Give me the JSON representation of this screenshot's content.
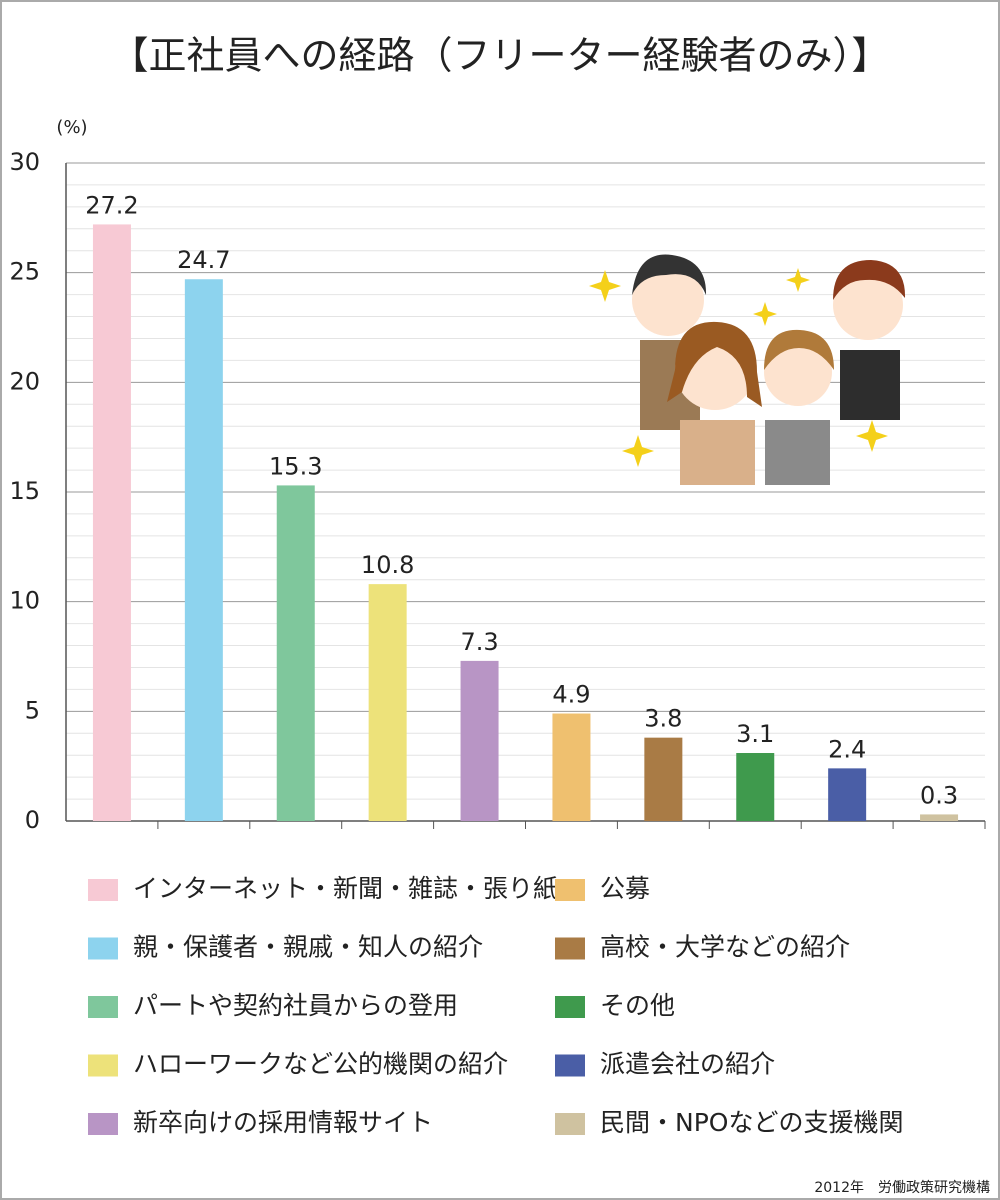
{
  "chart_data": {
    "type": "bar",
    "title": "【正社員への経路（フリーター経験者のみ）】",
    "y_unit": "(%)",
    "categories": [
      "インターネット・新聞・雑誌・張り紙",
      "親・保護者・親戚・知人の紹介",
      "パートや契約社員からの登用",
      "ハローワークなど公的機関の紹介",
      "新卒向けの採用情報サイト",
      "公募",
      "高校・大学などの紹介",
      "その他",
      "派遣会社の紹介",
      "民間・NPOなどの支援機関"
    ],
    "values": [
      27.2,
      24.7,
      15.3,
      10.8,
      7.3,
      4.9,
      3.8,
      3.1,
      2.4,
      0.3
    ],
    "colors": [
      "#f7c9d4",
      "#8dd3ee",
      "#7fc79c",
      "#ede27a",
      "#b895c5",
      "#efc06f",
      "#a97b45",
      "#3f9a4d",
      "#4a5ea6",
      "#cfc2a0"
    ],
    "ylim": [
      0,
      30
    ],
    "yticks": [
      0,
      5,
      10,
      15,
      20,
      25,
      30
    ],
    "grid": true,
    "minor_grid": true,
    "source": "2012年　労働政策研究機構"
  }
}
